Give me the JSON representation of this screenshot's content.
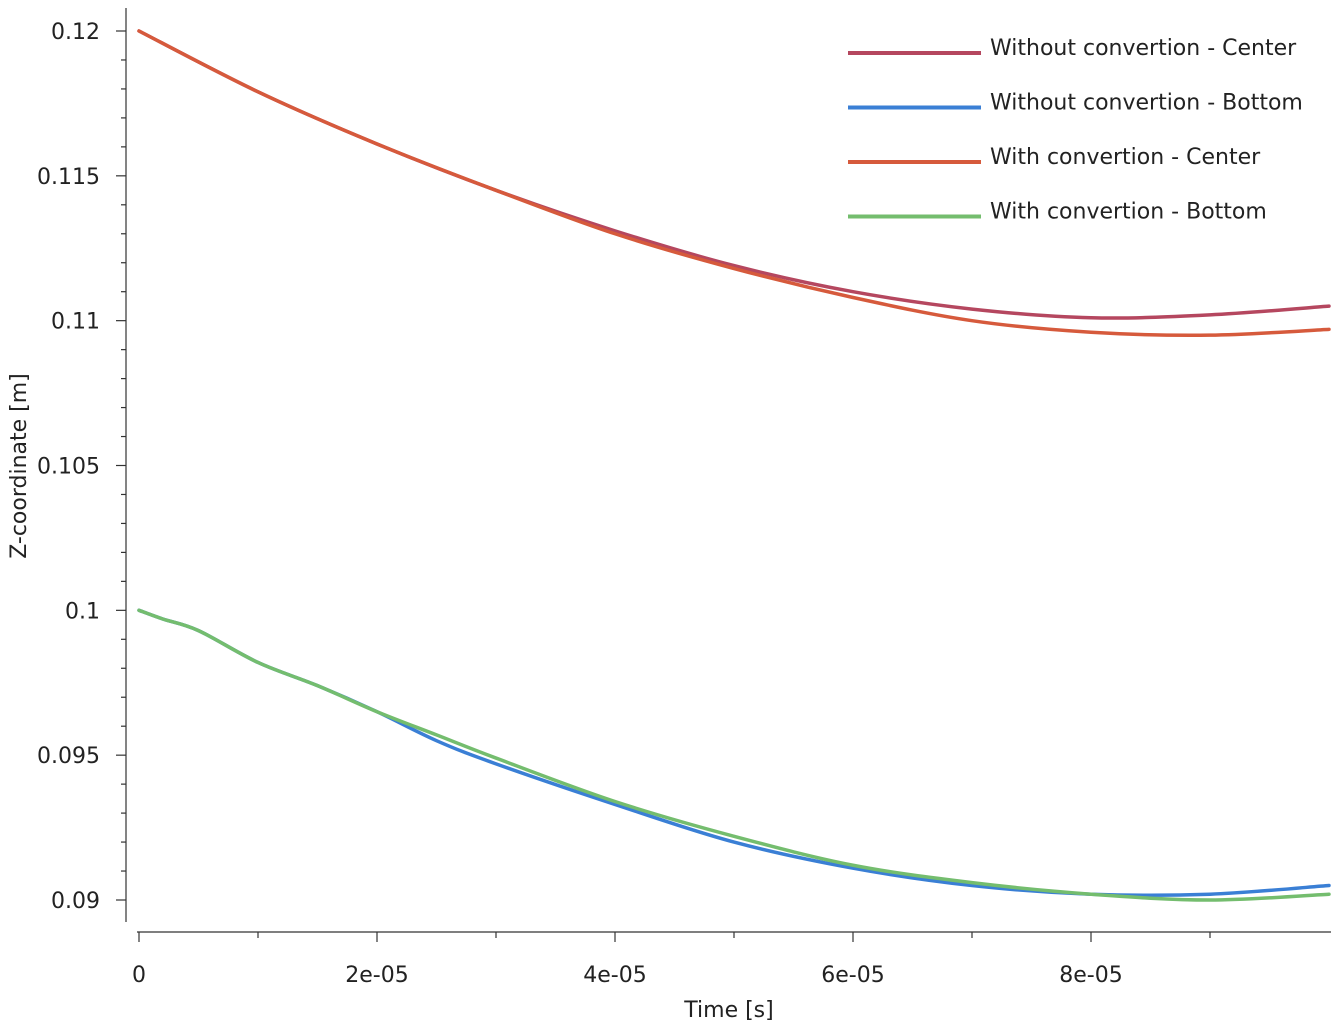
{
  "chart_data": {
    "type": "line",
    "xlabel": "Time [s]",
    "ylabel": "Z-coordinate [m]",
    "xlim": [
      0,
      0.0001
    ],
    "ylim": [
      0.09,
      0.12
    ],
    "x_ticks": [
      0,
      2e-05,
      4e-05,
      6e-05,
      8e-05
    ],
    "x_tick_labels": [
      "0",
      "2e-05",
      "4e-05",
      "6e-05",
      "8e-05"
    ],
    "x_minor_step": 1e-05,
    "y_ticks": [
      0.09,
      0.095,
      0.1,
      0.105,
      0.11,
      0.115,
      0.12
    ],
    "y_tick_labels": [
      "0.09",
      "0.095",
      "0.1",
      "0.105",
      "0.11",
      "0.115",
      "0.12"
    ],
    "y_minor_step": 0.001,
    "legend_position": "top-right",
    "series": [
      {
        "name": "Without convertion - Center",
        "color": "#b5475f",
        "x": [
          0,
          1e-05,
          2e-05,
          3e-05,
          4e-05,
          5e-05,
          6e-05,
          7e-05,
          8e-05,
          9e-05,
          0.0001
        ],
        "y": [
          0.12,
          0.1179,
          0.1161,
          0.1145,
          0.1131,
          0.1119,
          0.111,
          0.1104,
          0.1101,
          0.1102,
          0.1105
        ]
      },
      {
        "name": "Without convertion - Bottom",
        "color": "#3a7fd5",
        "x": [
          0,
          2e-06,
          5e-06,
          1e-05,
          1.5e-05,
          2e-05,
          2.5e-05,
          3e-05,
          4e-05,
          5e-05,
          6e-05,
          7e-05,
          8e-05,
          9e-05,
          0.0001
        ],
        "y": [
          0.1,
          0.0997,
          0.0993,
          0.0982,
          0.0974,
          0.0965,
          0.0955,
          0.0947,
          0.0933,
          0.092,
          0.0911,
          0.0905,
          0.0902,
          0.0902,
          0.0905
        ]
      },
      {
        "name": "With convertion - Center",
        "color": "#d65a3c",
        "x": [
          0,
          1e-05,
          2e-05,
          3e-05,
          4e-05,
          5e-05,
          6e-05,
          7e-05,
          8e-05,
          9e-05,
          0.0001
        ],
        "y": [
          0.12,
          0.1179,
          0.1161,
          0.1145,
          0.113,
          0.1118,
          0.1108,
          0.11,
          0.1096,
          0.1095,
          0.1097
        ]
      },
      {
        "name": "With convertion - Bottom",
        "color": "#74bd6e",
        "x": [
          0,
          2e-06,
          5e-06,
          1e-05,
          1.5e-05,
          2e-05,
          2.5e-05,
          3e-05,
          4e-05,
          5e-05,
          6e-05,
          7e-05,
          8e-05,
          9e-05,
          0.0001
        ],
        "y": [
          0.1,
          0.0997,
          0.0993,
          0.0982,
          0.0974,
          0.0965,
          0.0957,
          0.0949,
          0.0934,
          0.0922,
          0.0912,
          0.0906,
          0.0902,
          0.09,
          0.0902
        ]
      }
    ]
  }
}
